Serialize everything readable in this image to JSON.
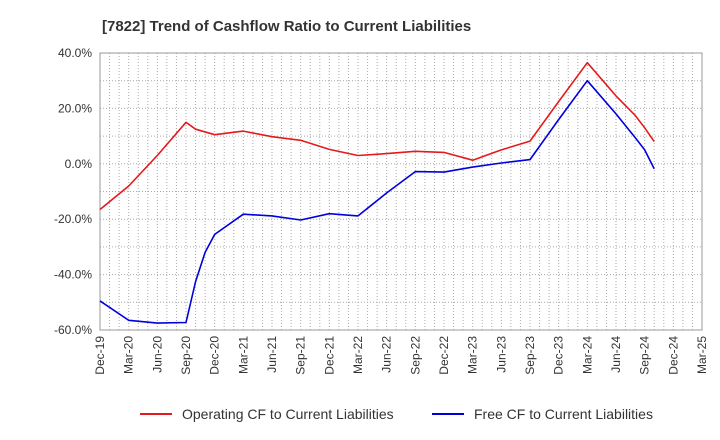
{
  "chart_data": {
    "type": "line",
    "title": "[7822]  Trend of Cashflow Ratio to Current Liabilities",
    "xlabel": "",
    "ylabel": "",
    "ylim": [
      -60,
      40
    ],
    "yticks": [
      40,
      20,
      0,
      -20,
      -40,
      -60
    ],
    "ytick_labels": [
      "40.0%",
      "20.0%",
      "0.0%",
      "-20.0%",
      "-40.0%",
      "-60.0%"
    ],
    "x_months_range": [
      "2019-12",
      "2025-03"
    ],
    "xtick_labels": [
      "Dec-19",
      "Mar-20",
      "Jun-20",
      "Sep-20",
      "Dec-20",
      "Mar-21",
      "Jun-21",
      "Sep-21",
      "Dec-21",
      "Mar-22",
      "Jun-22",
      "Sep-22",
      "Dec-22",
      "Mar-23",
      "Jun-23",
      "Sep-23",
      "Dec-23",
      "Mar-24",
      "Jun-24",
      "Sep-24",
      "Dec-24",
      "Mar-25"
    ],
    "grid": true,
    "legend_position": "bottom",
    "series": [
      {
        "name": "Operating CF to Current Liabilities",
        "color": "#e41a1c",
        "points": [
          [
            "2019-12",
            -16.5
          ],
          [
            "2020-03",
            -8
          ],
          [
            "2020-06",
            3
          ],
          [
            "2020-09",
            15
          ],
          [
            "2020-10",
            12.5
          ],
          [
            "2020-12",
            10.5
          ],
          [
            "2021-03",
            11.8
          ],
          [
            "2021-06",
            9.8
          ],
          [
            "2021-09",
            8.5
          ],
          [
            "2021-12",
            5.2
          ],
          [
            "2022-03",
            3
          ],
          [
            "2022-06",
            3.7
          ],
          [
            "2022-09",
            4.5
          ],
          [
            "2022-12",
            4.1
          ],
          [
            "2023-03",
            1.3
          ],
          [
            "2023-06",
            5
          ],
          [
            "2023-09",
            8.2
          ],
          [
            "2023-12",
            22.5
          ],
          [
            "2024-03",
            36.5
          ],
          [
            "2024-06",
            24.5
          ],
          [
            "2024-08",
            17.5
          ],
          [
            "2024-09",
            13
          ],
          [
            "2024-10",
            8
          ]
        ]
      },
      {
        "name": "Free CF to Current Liabilities",
        "color": "#0000dd",
        "points": [
          [
            "2019-12",
            -49.5
          ],
          [
            "2020-03",
            -56.5
          ],
          [
            "2020-06",
            -57.5
          ],
          [
            "2020-09",
            -57.3
          ],
          [
            "2020-10",
            -42.5
          ],
          [
            "2020-11",
            -32
          ],
          [
            "2020-12",
            -25.5
          ],
          [
            "2021-03",
            -18.2
          ],
          [
            "2021-06",
            -18.8
          ],
          [
            "2021-09",
            -20.3
          ],
          [
            "2021-12",
            -18
          ],
          [
            "2022-03",
            -18.8
          ],
          [
            "2022-06",
            -10.5
          ],
          [
            "2022-09",
            -2.8
          ],
          [
            "2022-12",
            -3
          ],
          [
            "2023-03",
            -1.2
          ],
          [
            "2023-06",
            0.3
          ],
          [
            "2023-09",
            1.5
          ],
          [
            "2023-12",
            16
          ],
          [
            "2024-03",
            30
          ],
          [
            "2024-06",
            18
          ],
          [
            "2024-08",
            9.5
          ],
          [
            "2024-09",
            5
          ],
          [
            "2024-10",
            -1.8
          ]
        ]
      }
    ]
  }
}
